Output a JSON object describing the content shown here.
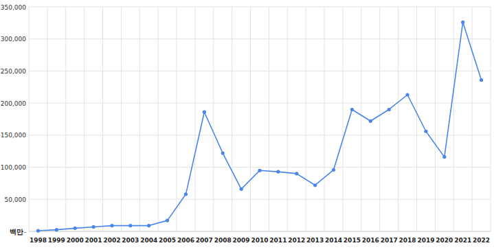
{
  "chart_data": {
    "type": "line",
    "y_label": "백만",
    "categories": [
      "1998",
      "1999",
      "2000",
      "2001",
      "2002",
      "2003",
      "2004",
      "2005",
      "2006",
      "2007",
      "2008",
      "2009",
      "2010",
      "2011",
      "2012",
      "2013",
      "2014",
      "2015",
      "2016",
      "2017",
      "2018",
      "2019",
      "2020",
      "2021",
      "2022"
    ],
    "values": [
      1000,
      2500,
      5000,
      7000,
      9000,
      9000,
      9000,
      17000,
      58000,
      186000,
      122000,
      66000,
      95000,
      93000,
      90000,
      72000,
      96000,
      190000,
      172000,
      190000,
      213000,
      156000,
      116000,
      326000,
      236000
    ],
    "color": "#4a86e8",
    "marker": "circle",
    "ylim": [
      0,
      350000
    ],
    "yticks": [
      {
        "value": 0,
        "label": "-"
      },
      {
        "value": 50000,
        "label": "50,000"
      },
      {
        "value": 100000,
        "label": "100,000"
      },
      {
        "value": 150000,
        "label": "150,000"
      },
      {
        "value": 200000,
        "label": "200,000"
      },
      {
        "value": 250000,
        "label": "250,000"
      },
      {
        "value": 300000,
        "label": "300,000"
      },
      {
        "value": 350000,
        "label": "350,000"
      }
    ],
    "grid": true
  }
}
